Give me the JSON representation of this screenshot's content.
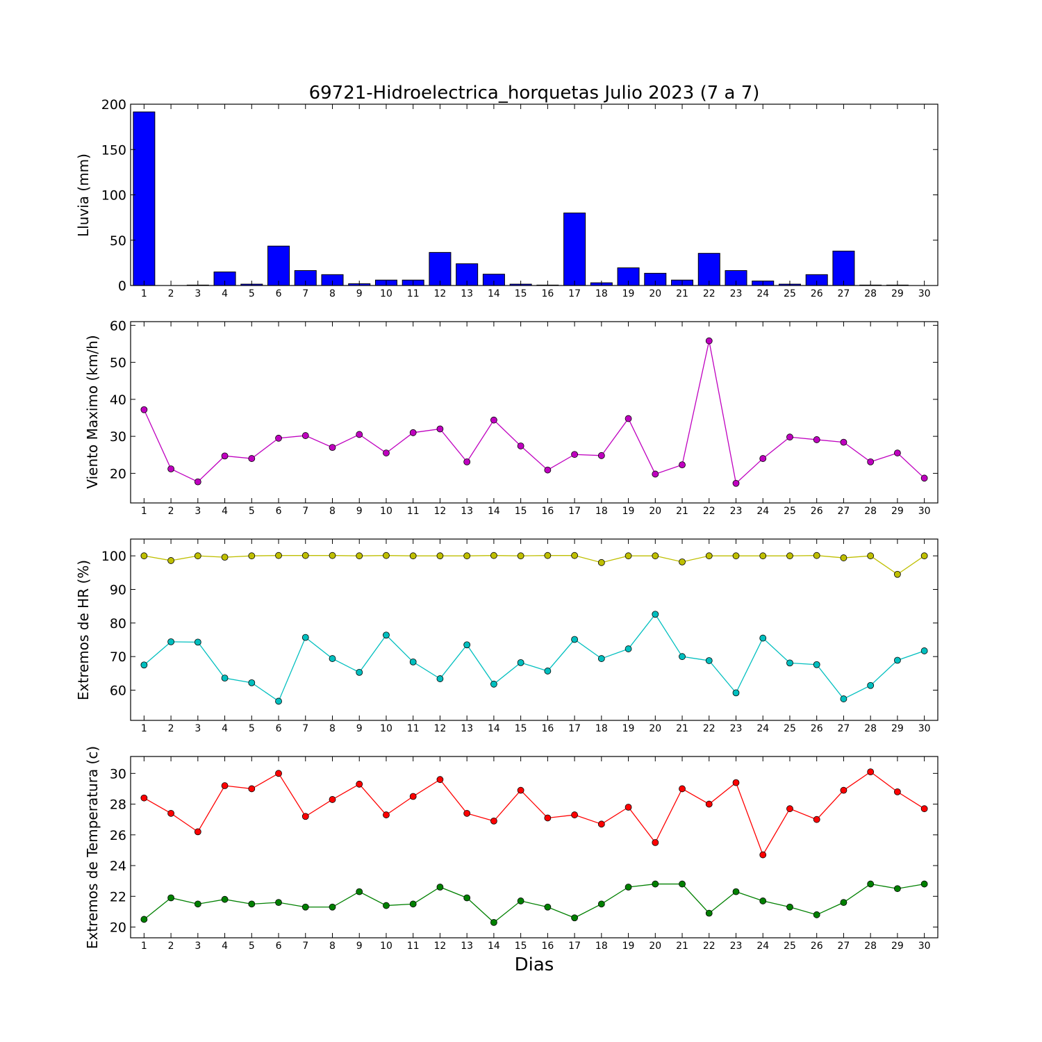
{
  "figure": {
    "title": "69721-Hidroelectrica_horquetas Julio 2023  (7 a 7)",
    "xlabel": "Dias"
  },
  "chart_data": [
    {
      "type": "bar",
      "ylabel": "Lluvia (mm)",
      "ylim": [
        0,
        200
      ],
      "yticks": [
        0,
        50,
        100,
        150,
        200
      ],
      "x": [
        1,
        2,
        3,
        4,
        5,
        6,
        7,
        8,
        9,
        10,
        11,
        12,
        13,
        14,
        15,
        16,
        17,
        18,
        19,
        20,
        21,
        22,
        23,
        24,
        25,
        26,
        27,
        28,
        29,
        30
      ],
      "xlim": [
        0.5,
        30.5
      ],
      "values": [
        191.5,
        0,
        0.5,
        15,
        1.5,
        43.5,
        16.5,
        12,
        2,
        6,
        6,
        36.5,
        24,
        12.5,
        1.5,
        0.5,
        80,
        3,
        19.5,
        13.5,
        6,
        35.5,
        16.5,
        5,
        1.5,
        12,
        38,
        0.5,
        0.5,
        0
      ],
      "color": "#0000ff",
      "grid": false
    },
    {
      "type": "line",
      "ylabel": "Viento Maximo (km/h)",
      "ylim": [
        12,
        61
      ],
      "yticks": [
        20,
        30,
        40,
        50,
        60
      ],
      "x": [
        1,
        2,
        3,
        4,
        5,
        6,
        7,
        8,
        9,
        10,
        11,
        12,
        13,
        14,
        15,
        16,
        17,
        18,
        19,
        20,
        21,
        22,
        23,
        24,
        25,
        26,
        27,
        28,
        29,
        30
      ],
      "xlim": [
        0.5,
        30.5
      ],
      "series": [
        {
          "values": [
            37.2,
            21.2,
            17.7,
            24.7,
            24,
            29.5,
            30.2,
            27,
            30.5,
            25.5,
            31,
            32,
            23.1,
            34.4,
            27.4,
            20.9,
            25.1,
            24.8,
            34.8,
            19.8,
            22.3,
            55.8,
            17.3,
            24,
            29.8,
            29.1,
            28.4,
            23.1,
            25.5,
            18.7
          ],
          "color": "#bf00bf"
        }
      ],
      "grid": false
    },
    {
      "type": "line",
      "ylabel": "Extremos de HR (%)",
      "ylim": [
        51,
        105
      ],
      "yticks": [
        60,
        70,
        80,
        90,
        100
      ],
      "x": [
        1,
        2,
        3,
        4,
        5,
        6,
        7,
        8,
        9,
        10,
        11,
        12,
        13,
        14,
        15,
        16,
        17,
        18,
        19,
        20,
        21,
        22,
        23,
        24,
        25,
        26,
        27,
        28,
        29,
        30
      ],
      "xlim": [
        0.5,
        30.5
      ],
      "series": [
        {
          "values": [
            100,
            98.6,
            100,
            99.6,
            100,
            100.1,
            100.1,
            100.1,
            100,
            100.1,
            100,
            100,
            100,
            100.1,
            100,
            100.1,
            100.1,
            98,
            100,
            100,
            98.2,
            100,
            100,
            100,
            100,
            100.1,
            99.4,
            100,
            94.5,
            100
          ],
          "color": "#bfbf00"
        },
        {
          "values": [
            67.5,
            74.4,
            74.3,
            63.6,
            62.2,
            56.7,
            75.7,
            69.4,
            65.3,
            76.4,
            68.4,
            63.4,
            73.5,
            61.8,
            68.2,
            65.7,
            75.1,
            69.4,
            72.3,
            82.6,
            70,
            68.8,
            59.2,
            75.5,
            68.1,
            67.6,
            57.4,
            61.4,
            68.9,
            71.7
          ],
          "color": "#00bfbf"
        }
      ],
      "grid": false
    },
    {
      "type": "line",
      "ylabel": "Extremos de Temperatura (c)",
      "ylim": [
        19.3,
        31.1
      ],
      "yticks": [
        20,
        22,
        24,
        26,
        28,
        30
      ],
      "x": [
        1,
        2,
        3,
        4,
        5,
        6,
        7,
        8,
        9,
        10,
        11,
        12,
        13,
        14,
        15,
        16,
        17,
        18,
        19,
        20,
        21,
        22,
        23,
        24,
        25,
        26,
        27,
        28,
        29,
        30
      ],
      "xlim": [
        0.5,
        30.5
      ],
      "series": [
        {
          "values": [
            28.4,
            27.4,
            26.2,
            29.2,
            29,
            30,
            27.2,
            28.3,
            29.3,
            27.3,
            28.5,
            29.6,
            27.4,
            26.9,
            28.9,
            27.1,
            27.3,
            26.7,
            27.8,
            25.5,
            29,
            28,
            29.4,
            24.7,
            27.7,
            27,
            28.9,
            30.1,
            28.8,
            27.7
          ],
          "color": "#ff0000"
        },
        {
          "values": [
            20.5,
            21.9,
            21.5,
            21.8,
            21.5,
            21.6,
            21.3,
            21.3,
            22.3,
            21.4,
            21.5,
            22.6,
            21.9,
            20.3,
            21.7,
            21.3,
            20.6,
            21.5,
            22.6,
            22.8,
            22.8,
            20.9,
            22.3,
            21.7,
            21.3,
            20.8,
            21.6,
            22.8,
            22.5,
            22.8
          ],
          "color": "#008000"
        }
      ],
      "grid": false
    }
  ]
}
